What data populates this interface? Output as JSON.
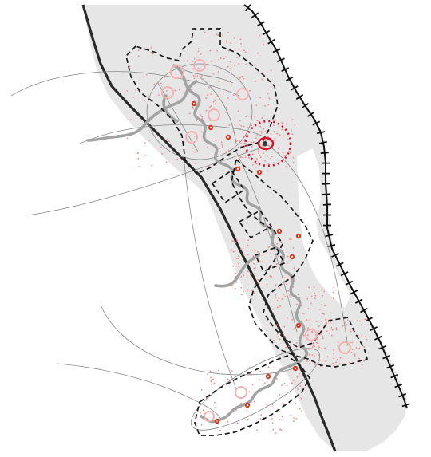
{
  "colors": {
    "background": "#ffffff",
    "landmass": "#e6e6e6",
    "road": "#2a2a2a",
    "dashed_boundary": "#1a1a1a",
    "railway": "#111111",
    "leader_line": "#8a8a8a",
    "path": "#a3a3a3",
    "stipple": "#f08a8a",
    "node_ring": "#f4b2b2",
    "marker": "#d63a1f",
    "focus_ring": "#d8102a"
  },
  "icons": {
    "focus_marker": "target-icon",
    "point_marker": "dot-marker-icon",
    "railway": "railway-track"
  }
}
